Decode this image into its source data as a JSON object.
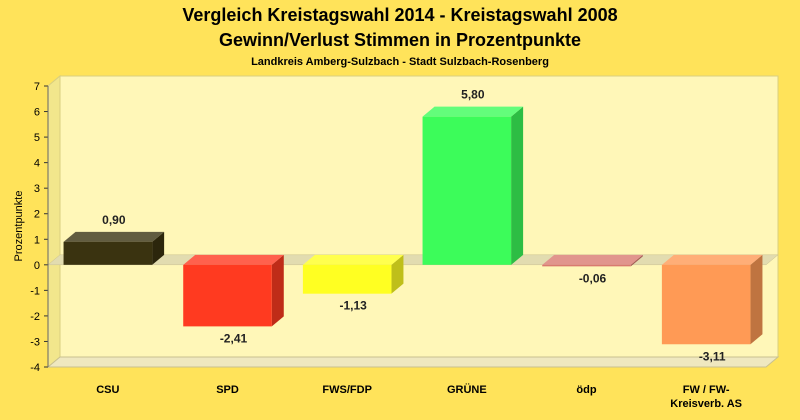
{
  "chart_data": {
    "type": "bar",
    "title": "Vergleich Kreistagswahl 2014 - Kreistagswahl 2008",
    "subtitle": "Gewinn/Verlust Stimmen in Prozentpunkte",
    "subtitle2": "Landkreis Amberg-Sulzbach - Stadt Sulzbach-Rosenberg",
    "ylabel": "Prozentpunkte",
    "ylim": [
      -4,
      7
    ],
    "yticks": [
      -4,
      -3,
      -2,
      -1,
      0,
      1,
      2,
      3,
      4,
      5,
      6,
      7
    ],
    "categories": [
      "CSU",
      "SPD",
      "FWS/FDP",
      "GRÜNE",
      "ödp",
      "FW / FW-Kreisverb. AS"
    ],
    "category_lines": [
      [
        "CSU"
      ],
      [
        "SPD"
      ],
      [
        "FWS/FDP"
      ],
      [
        "GRÜNE"
      ],
      [
        "ödp"
      ],
      [
        "FW / FW-",
        "Kreisverb. AS"
      ]
    ],
    "values": [
      0.9,
      -2.41,
      -1.13,
      5.8,
      -0.06,
      -3.11
    ],
    "value_labels": [
      "0,90",
      "-2,41",
      "-1,13",
      "5,80",
      "-0,06",
      "-3,11"
    ],
    "colors": [
      "#3a3310",
      "#ff3a20",
      "#ffff22",
      "#3cfc5a",
      "#d97a70",
      "#ff9a55"
    ],
    "grid": false,
    "style": "3d"
  }
}
